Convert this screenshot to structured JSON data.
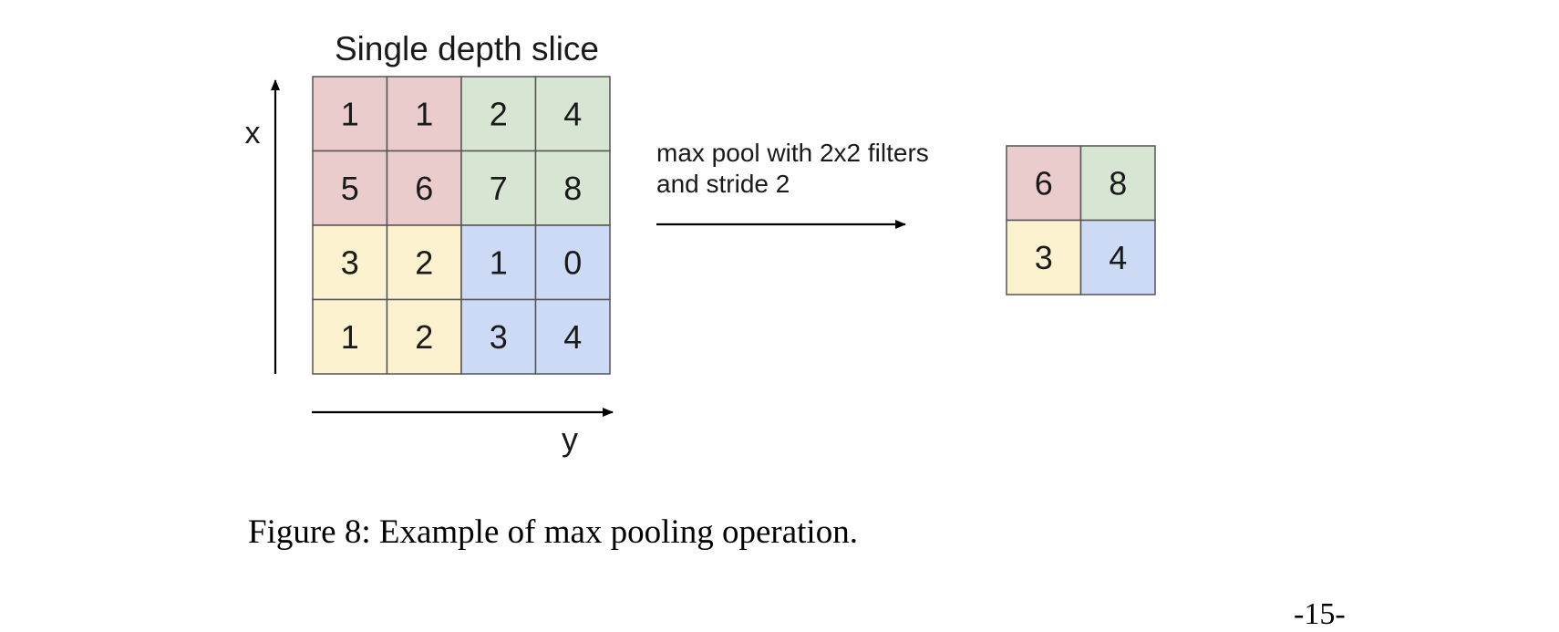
{
  "figure": {
    "input": {
      "title": "Single depth slice",
      "axis_x_label": "x",
      "axis_y_label": "y",
      "grid": [
        [
          "1",
          "1",
          "2",
          "4"
        ],
        [
          "5",
          "6",
          "7",
          "8"
        ],
        [
          "3",
          "2",
          "1",
          "0"
        ],
        [
          "1",
          "2",
          "3",
          "4"
        ]
      ]
    },
    "operation": {
      "line1": "max pool with 2x2 filters",
      "line2": "and stride 2"
    },
    "output": {
      "grid": [
        [
          "6",
          "8"
        ],
        [
          "3",
          "4"
        ]
      ]
    },
    "region_colors": {
      "top_left": "#ebcccd",
      "top_right": "#d7e6d2",
      "bottom_left": "#fcf2d0",
      "bottom_right": "#ccdaf5"
    },
    "grid_line_color": "#555555"
  },
  "caption": "Figure 8: Example of max pooling operation.",
  "page_number": "-15-"
}
